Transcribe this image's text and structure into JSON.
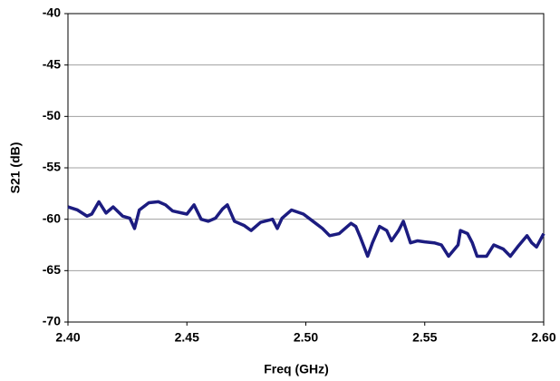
{
  "chart_data": {
    "type": "line",
    "x_label": "Freq (GHz)",
    "y_label": "S21 (dB)",
    "xlim": [
      2.4,
      2.6
    ],
    "xticks": [
      {
        "value": 2.4,
        "label": "2.40"
      },
      {
        "value": 2.45,
        "label": "2.45"
      },
      {
        "value": 2.5,
        "label": "2.50"
      },
      {
        "value": 2.55,
        "label": "2.55"
      },
      {
        "value": 2.6,
        "label": "2.60"
      }
    ],
    "ylim": [
      -70,
      -40
    ],
    "yticks": [
      -70,
      -65,
      -60,
      -55,
      -50,
      -45,
      -40
    ],
    "grid": true,
    "series": [
      {
        "color": "#1c1c80",
        "x": [
          2.4,
          2.404,
          2.408,
          2.41,
          2.413,
          2.416,
          2.419,
          2.423,
          2.426,
          2.428,
          2.43,
          2.434,
          2.438,
          2.441,
          2.444,
          2.448,
          2.45,
          2.453,
          2.456,
          2.459,
          2.462,
          2.465,
          2.467,
          2.47,
          2.474,
          2.477,
          2.481,
          2.486,
          2.488,
          2.49,
          2.494,
          2.499,
          2.503,
          2.507,
          2.51,
          2.514,
          2.519,
          2.521,
          2.523,
          2.526,
          2.528,
          2.531,
          2.534,
          2.536,
          2.539,
          2.541,
          2.544,
          2.547,
          2.55,
          2.554,
          2.557,
          2.56,
          2.564,
          2.565,
          2.568,
          2.57,
          2.572,
          2.576,
          2.579,
          2.583,
          2.586,
          2.589,
          2.593,
          2.595,
          2.597,
          2.6
        ],
        "values": [
          -58.8,
          -59.1,
          -59.7,
          -59.5,
          -58.3,
          -59.4,
          -58.8,
          -59.7,
          -59.9,
          -60.9,
          -59.1,
          -58.4,
          -58.3,
          -58.6,
          -59.2,
          -59.4,
          -59.5,
          -58.6,
          -60.0,
          -60.2,
          -59.9,
          -59.0,
          -58.6,
          -60.2,
          -60.6,
          -61.1,
          -60.3,
          -60.0,
          -60.9,
          -59.9,
          -59.1,
          -59.5,
          -60.2,
          -60.9,
          -61.6,
          -61.4,
          -60.4,
          -60.7,
          -61.8,
          -63.6,
          -62.3,
          -60.7,
          -61.1,
          -62.1,
          -61.1,
          -60.2,
          -62.3,
          -62.1,
          -62.2,
          -62.3,
          -62.5,
          -63.6,
          -62.5,
          -61.1,
          -61.4,
          -62.3,
          -63.6,
          -63.6,
          -62.5,
          -62.9,
          -63.6,
          -62.7,
          -61.6,
          -62.3,
          -62.7,
          -61.4
        ]
      }
    ]
  }
}
